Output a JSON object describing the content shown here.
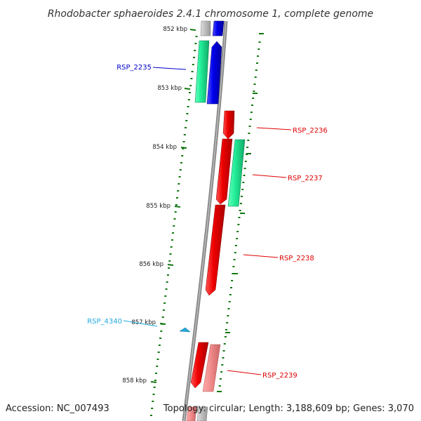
{
  "title": "Rhodobacter sphaeroides 2.4.1 chromosome 1, complete genome",
  "accession": "Accession: NC_007493",
  "topology": "Topology: circular; Length: 3,188,609 bp; Genes: 3,070",
  "kbp_labels": [
    "852 kbp",
    "853 kbp",
    "854 kbp",
    "855 kbp",
    "856 kbp",
    "857 kbp",
    "858 kbp"
  ],
  "genes": [
    {
      "name": "RSP_2235",
      "strand": "forward",
      "color": "#0000cc"
    },
    {
      "name": "RSP_2236",
      "strand": "reverse",
      "color": "#dd0000"
    },
    {
      "name": "RSP_2237",
      "strand": "reverse",
      "color": "#dd0000"
    },
    {
      "name": "RSP_2238",
      "strand": "reverse",
      "color": "#dd0000"
    },
    {
      "name": "RSP_4340",
      "strand": "forward",
      "color": "#22aadd"
    },
    {
      "name": "RSP_2239",
      "strand": "reverse",
      "color": "#dd0000"
    }
  ],
  "colors": {
    "forward_cds": "#0000ee",
    "reverse_cds": "#ee0000",
    "forward_rna": "#22ee99",
    "reverse_rna": "#22ee99",
    "reverse_faded": "#ee8888",
    "tick": "#117711",
    "backbone": "#888888"
  }
}
